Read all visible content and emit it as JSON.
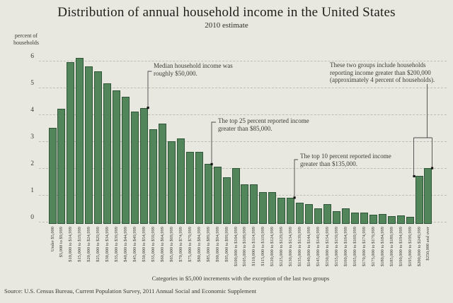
{
  "header": {
    "title": "Distribution of annual household income in the United States",
    "subtitle": "2010 estimate"
  },
  "y_axis_title_lines": [
    "percent of",
    "households"
  ],
  "footnote": "Categories in $5,000 increments with the exception of the last two groups",
  "source": "Source: U.S. Census Bureau, Current Population Survey, 2011 Annual Social and Economic Supplement",
  "annotations": {
    "median": {
      "lines": [
        "Median household income was",
        "roughly $50,000."
      ]
    },
    "top25": {
      "lines": [
        "The top 25 percent reported income",
        "greater than $85,000."
      ]
    },
    "top10": {
      "lines": [
        "The top 10 percent reported income",
        "greater than $135,000."
      ]
    },
    "top_groups": {
      "lines": [
        "These two groups include households",
        "reporting income greater than $200,000",
        "(approximately 4 percent of households)."
      ]
    }
  },
  "colors": {
    "background": "#e9e8e0",
    "bar_fill": "#52865a",
    "bar_border": "#2f5638",
    "gridline": "#bfbeb3",
    "annotation_line": "#4a4a4a",
    "marker": "#111111"
  },
  "chart_data": {
    "type": "bar",
    "title": "Distribution of annual household income in the United States",
    "subtitle": "2010 estimate",
    "ylabel": "percent of households",
    "xlabel": "Categories in $5,000 increments with the exception of the last two groups",
    "ylim": [
      0,
      6.2
    ],
    "yticks": [
      0,
      1,
      2,
      3,
      4,
      5,
      6
    ],
    "grid": true,
    "legend": "none",
    "categories": [
      "Under $5,000",
      "$5,000 to $9,999",
      "$10,000 to $14,999",
      "$15,000 to $19,999",
      "$20,000 to $24,999",
      "$25,000 to $29,999",
      "$30,000 to $34,999",
      "$35,000 to $39,999",
      "$40,000 to $44,999",
      "$45,000 to $49,999",
      "$50,000 to $54,999",
      "$55,000 to $59,999",
      "$60,000 to $64,999",
      "$65,000 to $69,999",
      "$70,000 to $74,999",
      "$75,000 to $79,999",
      "$80,000 to $84,999",
      "$85,000 to $89,999",
      "$90,000 to $94,999",
      "$95,000 to $99,999",
      "$100,000 to $104,999",
      "$105,000 to $109,999",
      "$110,000 to $114,999",
      "$115,000 to $119,999",
      "$120,000 to $124,999",
      "$125,000 to $129,999",
      "$130,000 to $134,999",
      "$135,000 to $139,999",
      "$140,000 to $144,999",
      "$145,000 to $149,999",
      "$150,000 to $154,999",
      "$155,000 to $159,999",
      "$160,000 to $164,999",
      "$165,000 to $169,999",
      "$170,000 to $174,999",
      "$175,000 to $179,999",
      "$180,000 to $184,999",
      "$185,000 to $189,999",
      "$190,000 to $194,999",
      "$195,000 to $199,999",
      "$200,000 to $249,999",
      "$250,000 and over"
    ],
    "values": [
      3.5,
      4.2,
      5.95,
      6.1,
      5.8,
      5.6,
      5.15,
      4.9,
      4.65,
      4.1,
      4.25,
      3.45,
      3.65,
      3.0,
      3.1,
      2.6,
      2.6,
      2.15,
      2.05,
      1.65,
      2.0,
      1.4,
      1.4,
      1.1,
      1.1,
      0.9,
      0.9,
      0.7,
      0.65,
      0.5,
      0.65,
      0.4,
      0.5,
      0.35,
      0.35,
      0.27,
      0.3,
      0.22,
      0.25,
      0.18,
      1.7,
      2.0
    ],
    "annotations": [
      {
        "text": "Median household income was roughly $50,000.",
        "points_to": "$50,000 to $54,999"
      },
      {
        "text": "The top 25 percent reported income greater than $85,000.",
        "points_to": "$85,000 to $89,999"
      },
      {
        "text": "The top 10 percent reported income greater than $135,000.",
        "points_to": "$130,000 to $134,999"
      },
      {
        "text": "These two groups include households reporting income greater than $200,000 (approximately 4 percent of households).",
        "points_to": "$200,000 to $249,999 and $250,000 and over"
      }
    ]
  }
}
